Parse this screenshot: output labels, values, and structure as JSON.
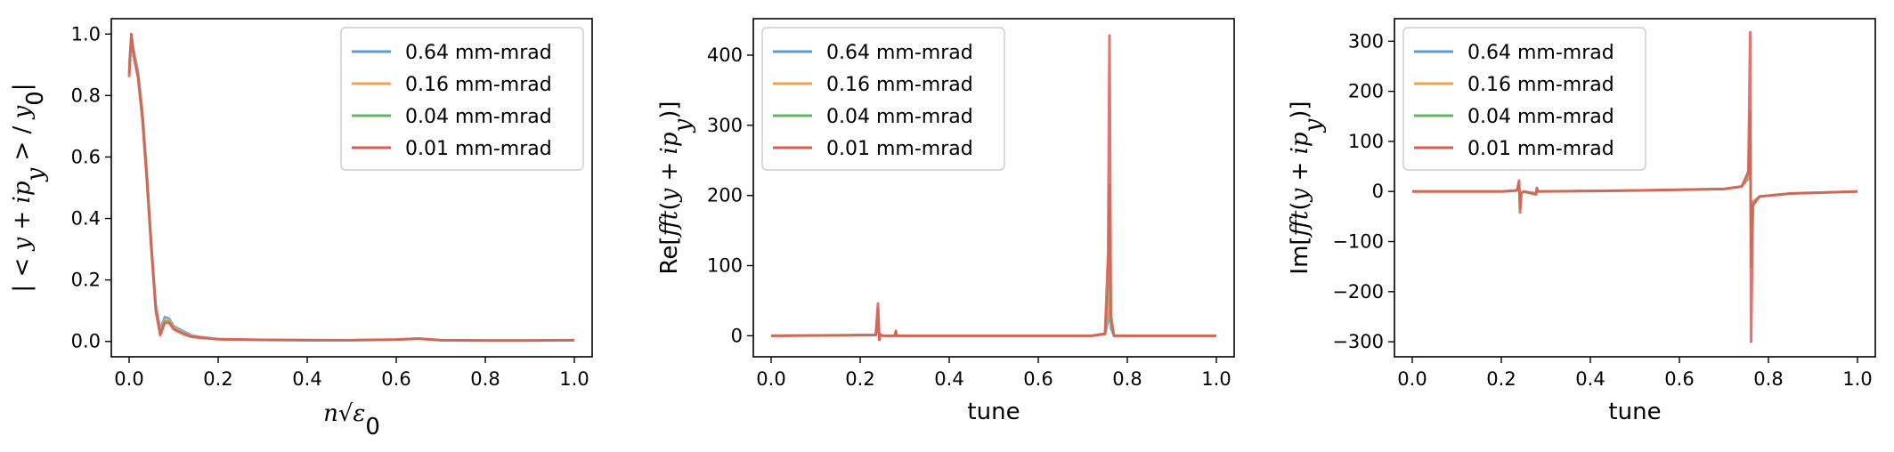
{
  "figure": {
    "legend_labels": [
      "0.64 mm-mrad",
      "0.16 mm-mrad",
      "0.04 mm-mrad",
      "0.01 mm-mrad"
    ],
    "series_colors": [
      "#5b9bd5",
      "#f5a050",
      "#5dbb5d",
      "#e05a55"
    ],
    "overlap_color": "#b5472e"
  },
  "chart_data": [
    {
      "type": "line",
      "title": "",
      "xlabel_math": "n√ε₀",
      "ylabel_math": "|<y + ip_y> / y₀|",
      "xlim": [
        -0.04,
        1.04
      ],
      "ylim": [
        -0.05,
        1.05
      ],
      "xticks": [
        0.0,
        0.2,
        0.4,
        0.6,
        0.8,
        1.0
      ],
      "xtick_labels": [
        "0.0",
        "0.2",
        "0.4",
        "0.6",
        "0.8",
        "1.0"
      ],
      "yticks": [
        0.0,
        0.2,
        0.4,
        0.6,
        0.8,
        1.0
      ],
      "ytick_labels": [
        "0.0",
        "0.2",
        "0.4",
        "0.6",
        "0.8",
        "1.0"
      ],
      "legend": "top-right",
      "grid": false,
      "series": [
        {
          "name": "0.64 mm-mrad",
          "x": [
            0.0,
            0.005,
            0.01,
            0.02,
            0.03,
            0.04,
            0.05,
            0.06,
            0.07,
            0.08,
            0.09,
            0.1,
            0.12,
            0.14,
            0.16,
            0.2,
            0.3,
            0.4,
            0.5,
            0.6,
            0.65,
            0.7,
            0.8,
            0.9,
            1.0
          ],
          "y": [
            0.9,
            1.0,
            0.95,
            0.88,
            0.75,
            0.55,
            0.32,
            0.12,
            0.04,
            0.08,
            0.075,
            0.05,
            0.035,
            0.02,
            0.015,
            0.008,
            0.005,
            0.005,
            0.004,
            0.006,
            0.01,
            0.004,
            0.003,
            0.003,
            0.004
          ]
        },
        {
          "name": "0.16 mm-mrad",
          "x": [
            0.0,
            0.005,
            0.01,
            0.02,
            0.03,
            0.04,
            0.05,
            0.06,
            0.07,
            0.08,
            0.09,
            0.1,
            0.12,
            0.14,
            0.16,
            0.2,
            0.3,
            0.4,
            0.5,
            0.6,
            0.65,
            0.7,
            0.8,
            0.9,
            1.0
          ],
          "y": [
            0.88,
            1.0,
            0.94,
            0.87,
            0.74,
            0.54,
            0.31,
            0.11,
            0.03,
            0.07,
            0.07,
            0.045,
            0.03,
            0.018,
            0.014,
            0.007,
            0.005,
            0.004,
            0.004,
            0.006,
            0.009,
            0.004,
            0.003,
            0.003,
            0.004
          ]
        },
        {
          "name": "0.04 mm-mrad",
          "x": [
            0.0,
            0.005,
            0.01,
            0.02,
            0.03,
            0.04,
            0.05,
            0.06,
            0.07,
            0.08,
            0.09,
            0.1,
            0.12,
            0.14,
            0.16,
            0.2,
            0.3,
            0.4,
            0.5,
            0.6,
            0.65,
            0.7,
            0.8,
            0.9,
            1.0
          ],
          "y": [
            0.87,
            1.0,
            0.94,
            0.86,
            0.73,
            0.53,
            0.3,
            0.1,
            0.025,
            0.065,
            0.065,
            0.04,
            0.028,
            0.016,
            0.012,
            0.007,
            0.005,
            0.004,
            0.004,
            0.006,
            0.009,
            0.004,
            0.003,
            0.003,
            0.004
          ]
        },
        {
          "name": "0.01 mm-mrad",
          "x": [
            0.0,
            0.005,
            0.01,
            0.02,
            0.03,
            0.04,
            0.05,
            0.06,
            0.07,
            0.08,
            0.09,
            0.1,
            0.12,
            0.14,
            0.16,
            0.2,
            0.3,
            0.4,
            0.5,
            0.6,
            0.65,
            0.7,
            0.8,
            0.9,
            1.0
          ],
          "y": [
            0.86,
            1.0,
            0.93,
            0.86,
            0.72,
            0.52,
            0.3,
            0.1,
            0.02,
            0.06,
            0.06,
            0.04,
            0.025,
            0.015,
            0.012,
            0.007,
            0.005,
            0.004,
            0.004,
            0.006,
            0.009,
            0.004,
            0.003,
            0.003,
            0.004
          ]
        }
      ]
    },
    {
      "type": "line",
      "title": "",
      "xlabel": "tune",
      "ylabel_math": "Re[fft(y + ip_y)]",
      "xlim": [
        -0.04,
        1.04
      ],
      "ylim": [
        -30,
        452
      ],
      "xticks": [
        0.0,
        0.2,
        0.4,
        0.6,
        0.8,
        1.0
      ],
      "xtick_labels": [
        "0.0",
        "0.2",
        "0.4",
        "0.6",
        "0.8",
        "1.0"
      ],
      "yticks": [
        0,
        100,
        200,
        300,
        400
      ],
      "ytick_labels": [
        "0",
        "100",
        "200",
        "300",
        "400"
      ],
      "legend": "top-left",
      "grid": false,
      "series": [
        {
          "name": "0.64 mm-mrad",
          "x": [
            0.0,
            0.235,
            0.24,
            0.243,
            0.245,
            0.25,
            0.278,
            0.28,
            0.282,
            0.5,
            0.72,
            0.75,
            0.757,
            0.76,
            0.763,
            0.77,
            1.0
          ],
          "y": [
            0,
            1,
            15,
            -3,
            2,
            0,
            0,
            4,
            0,
            0,
            0,
            2,
            20,
            55,
            10,
            0,
            0
          ]
        },
        {
          "name": "0.16 mm-mrad",
          "x": [
            0.0,
            0.235,
            0.24,
            0.243,
            0.245,
            0.25,
            0.278,
            0.28,
            0.282,
            0.5,
            0.72,
            0.75,
            0.757,
            0.76,
            0.763,
            0.77,
            1.0
          ],
          "y": [
            0,
            1,
            25,
            -4,
            2,
            0,
            0,
            5,
            0,
            0,
            0,
            2,
            40,
            110,
            15,
            0,
            0
          ]
        },
        {
          "name": "0.04 mm-mrad",
          "x": [
            0.0,
            0.235,
            0.24,
            0.243,
            0.245,
            0.25,
            0.278,
            0.28,
            0.282,
            0.5,
            0.72,
            0.75,
            0.757,
            0.76,
            0.763,
            0.77,
            1.0
          ],
          "y": [
            0,
            1,
            38,
            -5,
            2,
            0,
            0,
            6,
            0,
            0,
            0,
            3,
            70,
            215,
            20,
            0,
            0
          ]
        },
        {
          "name": "0.01 mm-mrad",
          "x": [
            0.0,
            0.235,
            0.24,
            0.243,
            0.245,
            0.25,
            0.278,
            0.28,
            0.282,
            0.5,
            0.72,
            0.75,
            0.757,
            0.76,
            0.763,
            0.77,
            1.0
          ],
          "y": [
            0,
            1,
            46,
            -6,
            2,
            0,
            0,
            7,
            0,
            0,
            0,
            3,
            120,
            428,
            30,
            0,
            0
          ]
        }
      ]
    },
    {
      "type": "line",
      "title": "",
      "xlabel": "tune",
      "ylabel_math": "Im[fft(y + ip_y)]",
      "xlim": [
        -0.04,
        1.04
      ],
      "ylim": [
        -330,
        345
      ],
      "xticks": [
        0.0,
        0.2,
        0.4,
        0.6,
        0.8,
        1.0
      ],
      "xtick_labels": [
        "0.0",
        "0.2",
        "0.4",
        "0.6",
        "0.8",
        "1.0"
      ],
      "yticks": [
        -300,
        -200,
        -100,
        0,
        100,
        200,
        300
      ],
      "ytick_labels": [
        "−300",
        "−200",
        "−100",
        "0",
        "100",
        "200",
        "300"
      ],
      "legend": "top-left",
      "grid": false,
      "series": [
        {
          "name": "0.64 mm-mrad",
          "x": [
            0.0,
            0.2,
            0.235,
            0.24,
            0.242,
            0.245,
            0.25,
            0.278,
            0.28,
            0.282,
            0.5,
            0.7,
            0.74,
            0.755,
            0.759,
            0.761,
            0.765,
            0.78,
            0.85,
            1.0
          ],
          "y": [
            0,
            0,
            2,
            10,
            -15,
            -3,
            0,
            -3,
            4,
            0,
            2,
            5,
            10,
            25,
            60,
            -50,
            -20,
            -10,
            -4,
            0
          ]
        },
        {
          "name": "0.16 mm-mrad",
          "x": [
            0.0,
            0.2,
            0.235,
            0.24,
            0.242,
            0.245,
            0.25,
            0.278,
            0.28,
            0.282,
            0.5,
            0.7,
            0.74,
            0.755,
            0.759,
            0.761,
            0.765,
            0.78,
            0.85,
            1.0
          ],
          "y": [
            0,
            0,
            2,
            14,
            -22,
            -3,
            0,
            -4,
            5,
            0,
            2,
            5,
            10,
            30,
            100,
            -90,
            -22,
            -10,
            -4,
            0
          ]
        },
        {
          "name": "0.04 mm-mrad",
          "x": [
            0.0,
            0.2,
            0.235,
            0.24,
            0.242,
            0.245,
            0.25,
            0.278,
            0.28,
            0.282,
            0.5,
            0.7,
            0.74,
            0.755,
            0.759,
            0.761,
            0.765,
            0.78,
            0.85,
            1.0
          ],
          "y": [
            0,
            0,
            2,
            18,
            -32,
            -3,
            0,
            -5,
            6,
            0,
            2,
            5,
            10,
            35,
            160,
            -150,
            -25,
            -10,
            -4,
            0
          ]
        },
        {
          "name": "0.01 mm-mrad",
          "x": [
            0.0,
            0.2,
            0.235,
            0.24,
            0.242,
            0.245,
            0.25,
            0.278,
            0.28,
            0.282,
            0.5,
            0.7,
            0.74,
            0.755,
            0.759,
            0.761,
            0.765,
            0.78,
            0.85,
            1.0
          ],
          "y": [
            0,
            0,
            2,
            22,
            -42,
            -3,
            0,
            -6,
            7,
            0,
            2,
            5,
            10,
            40,
            318,
            -300,
            -28,
            -10,
            -4,
            0
          ]
        }
      ]
    }
  ]
}
